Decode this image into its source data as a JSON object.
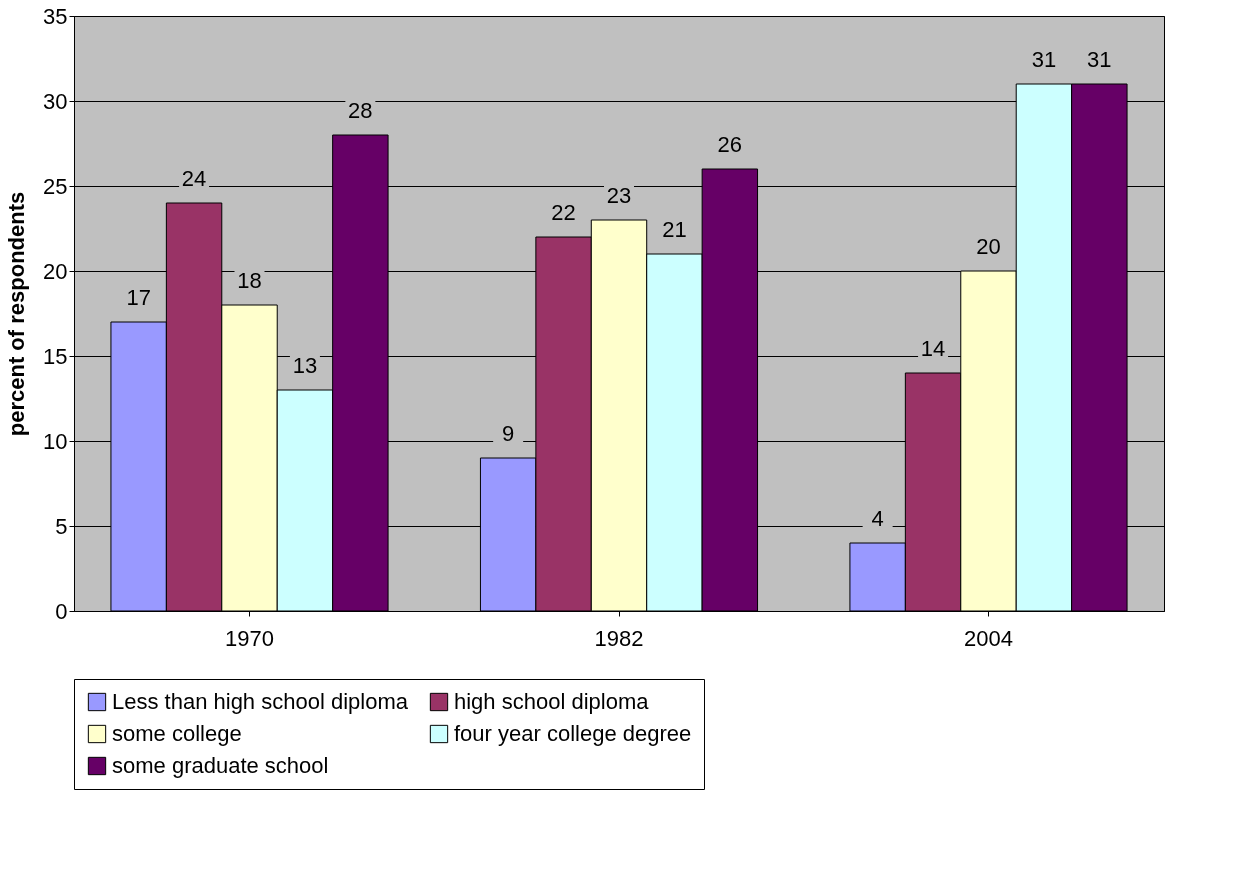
{
  "chart_data": {
    "type": "bar",
    "ylabel": "percent of respondents",
    "categories": [
      "1970",
      "1982",
      "2004"
    ],
    "series": [
      {
        "name": "Less than high school diploma",
        "color": "#9999ff",
        "values": [
          17,
          9,
          4
        ]
      },
      {
        "name": "high school diploma",
        "color": "#993366",
        "values": [
          24,
          22,
          14
        ]
      },
      {
        "name": "some college",
        "color": "#ffffcc",
        "values": [
          18,
          23,
          20
        ]
      },
      {
        "name": "four year college degree",
        "color": "#ccffff",
        "values": [
          13,
          21,
          31
        ]
      },
      {
        "name": "some graduate school",
        "color": "#660066",
        "values": [
          28,
          26,
          31
        ]
      }
    ],
    "ylim": [
      0,
      35
    ],
    "yticks": [
      0,
      5,
      10,
      15,
      20,
      25,
      30,
      35
    ],
    "grid": true,
    "legend": "bottom",
    "data_labels": true
  }
}
